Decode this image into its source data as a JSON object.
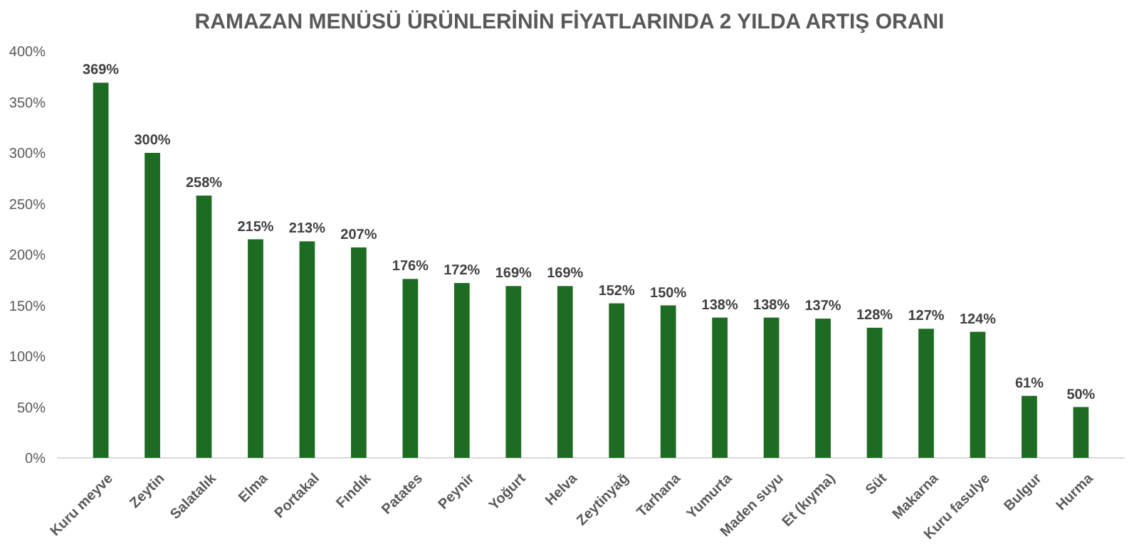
{
  "chart_data": {
    "type": "bar",
    "title": "RAMAZAN MENÜSÜ ÜRÜNLERİNİN FİYATLARINDA 2 YILDA ARTIŞ ORANI",
    "categories": [
      "Kuru meyve",
      "Zeytin",
      "Salatalık",
      "Elma",
      "Portakal",
      "Fındık",
      "Patates",
      "Peynir",
      "Yoğurt",
      "Helva",
      "Zeytinyağ",
      "Tarhana",
      "Yumurta",
      "Maden suyu",
      "Et (kıyma)",
      "Süt",
      "Makarna",
      "Kuru fasulye",
      "Bulgur",
      "Hurma"
    ],
    "values": [
      369,
      300,
      258,
      215,
      213,
      207,
      176,
      172,
      169,
      169,
      152,
      150,
      138,
      138,
      137,
      128,
      127,
      124,
      61,
      50
    ],
    "value_labels": [
      "369%",
      "300%",
      "258%",
      "215%",
      "213%",
      "207%",
      "176%",
      "172%",
      "169%",
      "169%",
      "152%",
      "150%",
      "138%",
      "138%",
      "137%",
      "128%",
      "127%",
      "124%",
      "61%",
      "50%"
    ],
    "color": "#1e6b23",
    "ylim": [
      0,
      400
    ],
    "yticks": [
      {
        "value": 0,
        "label": "0%"
      },
      {
        "value": 50,
        "label": "50%"
      },
      {
        "value": 100,
        "label": "100%"
      },
      {
        "value": 150,
        "label": "150%"
      },
      {
        "value": 200,
        "label": "200%"
      },
      {
        "value": 250,
        "label": "250%"
      },
      {
        "value": 300,
        "label": "300%"
      },
      {
        "value": 350,
        "label": "350%"
      },
      {
        "value": 400,
        "label": "400%"
      }
    ],
    "grid": false
  }
}
